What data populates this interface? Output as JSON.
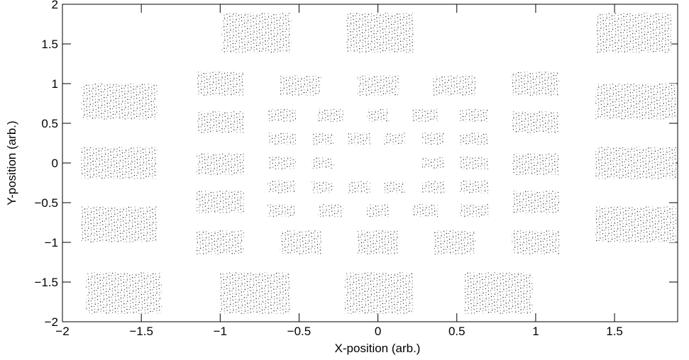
{
  "chart_data": {
    "type": "scatter",
    "x_label": "X-position (arb.)",
    "y_label": "Y-position (arb.)",
    "xlim": [
      -2,
      1.9
    ],
    "ylim": [
      -2,
      2
    ],
    "xticks": [
      {
        "value": -2,
        "label": "−2"
      },
      {
        "value": -1.5,
        "label": "−1.5"
      },
      {
        "value": -1,
        "label": "−1"
      },
      {
        "value": -0.5,
        "label": "−0.5"
      },
      0,
      0.5,
      1,
      1.5
    ],
    "yticks": [
      {
        "value": -2,
        "label": "−2"
      },
      {
        "value": -1.5,
        "label": "−1.5"
      },
      {
        "value": -1,
        "label": "−1"
      },
      {
        "value": -0.5,
        "label": "−0.5"
      },
      0,
      0.5,
      1,
      1.5,
      2
    ],
    "color": "#000000",
    "regions": [
      {
        "x": [
          -0.99,
          -0.55
        ],
        "y": [
          1.39,
          1.89
        ]
      },
      {
        "x": [
          -0.2,
          0.23
        ],
        "y": [
          1.39,
          1.89
        ]
      },
      {
        "x": [
          1.38,
          1.86
        ],
        "y": [
          1.39,
          1.89
        ]
      },
      {
        "x": [
          -1.85,
          -1.37
        ],
        "y": [
          -1.9,
          -1.38
        ]
      },
      {
        "x": [
          -1.0,
          -0.56
        ],
        "y": [
          -1.9,
          -1.38
        ]
      },
      {
        "x": [
          -0.21,
          0.22
        ],
        "y": [
          -1.9,
          -1.38
        ]
      },
      {
        "x": [
          0.55,
          0.98
        ],
        "y": [
          -1.9,
          -1.38
        ]
      },
      {
        "x": [
          -1.88,
          -1.4
        ],
        "y": [
          0.55,
          1.0
        ]
      },
      {
        "x": [
          -1.88,
          -1.4
        ],
        "y": [
          -0.2,
          0.2
        ]
      },
      {
        "x": [
          -1.88,
          -1.4
        ],
        "y": [
          -1.0,
          -0.55
        ]
      },
      {
        "x": [
          1.38,
          1.89
        ],
        "y": [
          0.55,
          1.0
        ]
      },
      {
        "x": [
          1.38,
          1.89
        ],
        "y": [
          -0.2,
          0.2
        ]
      },
      {
        "x": [
          1.38,
          1.89
        ],
        "y": [
          -1.0,
          -0.55
        ]
      },
      {
        "x": [
          -1.15,
          -0.85
        ],
        "y": [
          0.85,
          1.15
        ]
      },
      {
        "x": [
          -1.15,
          -0.85
        ],
        "y": [
          0.38,
          0.65
        ]
      },
      {
        "x": [
          -1.15,
          -0.85
        ],
        "y": [
          -0.15,
          0.12
        ]
      },
      {
        "x": [
          -1.15,
          -0.85
        ],
        "y": [
          -0.63,
          -0.35
        ]
      },
      {
        "x": [
          -1.15,
          -0.85
        ],
        "y": [
          -1.15,
          -0.85
        ]
      },
      {
        "x": [
          0.85,
          1.15
        ],
        "y": [
          0.85,
          1.15
        ]
      },
      {
        "x": [
          0.85,
          1.15
        ],
        "y": [
          0.38,
          0.65
        ]
      },
      {
        "x": [
          0.85,
          1.15
        ],
        "y": [
          -0.15,
          0.12
        ]
      },
      {
        "x": [
          0.85,
          1.15
        ],
        "y": [
          -0.63,
          -0.35
        ]
      },
      {
        "x": [
          0.85,
          1.15
        ],
        "y": [
          -1.15,
          -0.85
        ]
      },
      {
        "x": [
          -0.62,
          -0.36
        ],
        "y": [
          0.85,
          1.1
        ]
      },
      {
        "x": [
          -0.13,
          0.13
        ],
        "y": [
          0.85,
          1.1
        ]
      },
      {
        "x": [
          0.35,
          0.62
        ],
        "y": [
          0.85,
          1.1
        ]
      },
      {
        "x": [
          -0.62,
          -0.36
        ],
        "y": [
          -1.15,
          -0.85
        ]
      },
      {
        "x": [
          -0.13,
          0.13
        ],
        "y": [
          -1.15,
          -0.85
        ]
      },
      {
        "x": [
          0.35,
          0.62
        ],
        "y": [
          -1.15,
          -0.85
        ]
      },
      {
        "x": [
          -0.7,
          -0.52
        ],
        "y": [
          0.52,
          0.68
        ]
      },
      {
        "x": [
          -0.7,
          -0.52
        ],
        "y": [
          0.23,
          0.38
        ]
      },
      {
        "x": [
          -0.7,
          -0.52
        ],
        "y": [
          -0.08,
          0.08
        ]
      },
      {
        "x": [
          -0.7,
          -0.52
        ],
        "y": [
          -0.38,
          -0.22
        ]
      },
      {
        "x": [
          -0.7,
          -0.52
        ],
        "y": [
          -0.68,
          -0.52
        ]
      },
      {
        "x": [
          0.52,
          0.7
        ],
        "y": [
          0.52,
          0.68
        ]
      },
      {
        "x": [
          0.52,
          0.7
        ],
        "y": [
          0.23,
          0.38
        ]
      },
      {
        "x": [
          0.52,
          0.7
        ],
        "y": [
          -0.08,
          0.08
        ]
      },
      {
        "x": [
          0.52,
          0.7
        ],
        "y": [
          -0.38,
          -0.22
        ]
      },
      {
        "x": [
          0.52,
          0.7
        ],
        "y": [
          -0.68,
          -0.52
        ]
      },
      {
        "x": [
          -0.38,
          -0.22
        ],
        "y": [
          0.52,
          0.68
        ]
      },
      {
        "x": [
          -0.07,
          0.07
        ],
        "y": [
          0.52,
          0.68
        ]
      },
      {
        "x": [
          0.22,
          0.38
        ],
        "y": [
          0.52,
          0.68
        ]
      },
      {
        "x": [
          -0.38,
          -0.22
        ],
        "y": [
          -0.68,
          -0.52
        ]
      },
      {
        "x": [
          -0.07,
          0.07
        ],
        "y": [
          -0.68,
          -0.52
        ]
      },
      {
        "x": [
          0.22,
          0.38
        ],
        "y": [
          -0.68,
          -0.52
        ]
      },
      {
        "x": [
          -0.42,
          -0.28
        ],
        "y": [
          0.23,
          0.38
        ]
      },
      {
        "x": [
          -0.42,
          -0.28
        ],
        "y": [
          -0.07,
          0.07
        ]
      },
      {
        "x": [
          -0.42,
          -0.28
        ],
        "y": [
          -0.38,
          -0.23
        ]
      },
      {
        "x": [
          0.28,
          0.42
        ],
        "y": [
          0.23,
          0.38
        ]
      },
      {
        "x": [
          0.28,
          0.42
        ],
        "y": [
          -0.07,
          0.07
        ]
      },
      {
        "x": [
          0.28,
          0.42
        ],
        "y": [
          -0.38,
          -0.23
        ]
      },
      {
        "x": [
          -0.19,
          -0.05
        ],
        "y": [
          0.23,
          0.38
        ]
      },
      {
        "x": [
          0.04,
          0.17
        ],
        "y": [
          0.23,
          0.38
        ]
      },
      {
        "x": [
          -0.19,
          -0.05
        ],
        "y": [
          -0.38,
          -0.23
        ]
      },
      {
        "x": [
          0.04,
          0.17
        ],
        "y": [
          -0.38,
          -0.23
        ]
      }
    ]
  }
}
